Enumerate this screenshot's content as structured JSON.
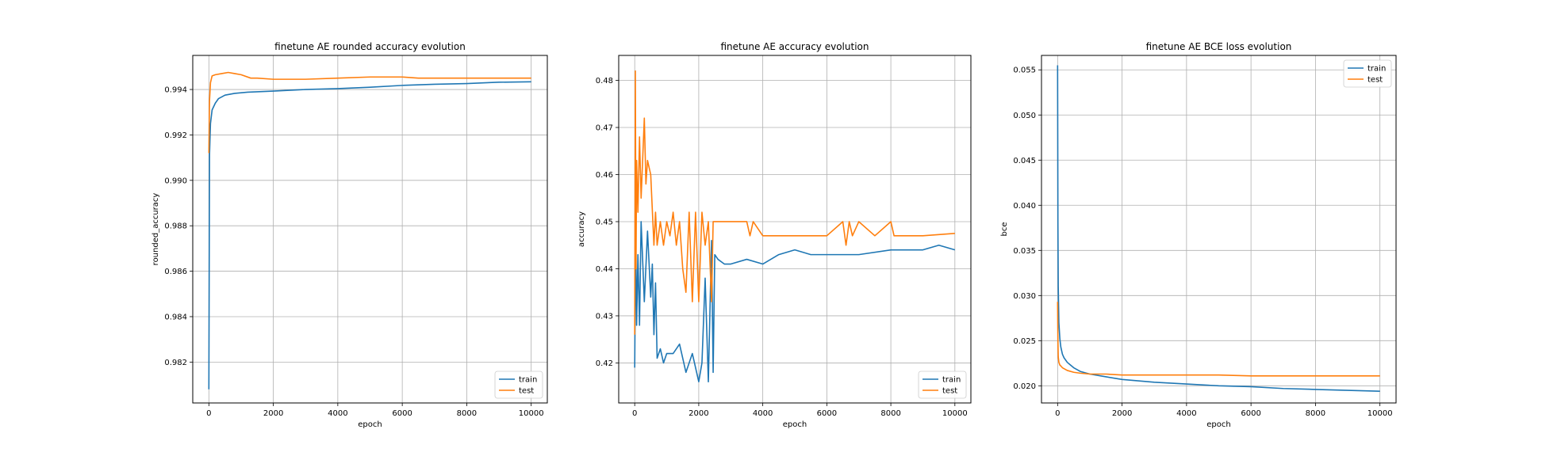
{
  "colors": {
    "train": "#1f77b4",
    "test": "#ff7f0e",
    "grid": "#b0b0b0"
  },
  "chart_data": [
    {
      "type": "line",
      "title": "finetune AE rounded accuracy evolution",
      "xlabel": "epoch",
      "ylabel": "rounded_accuracy",
      "xlim": [
        -500,
        10500
      ],
      "ylim": [
        0.9802,
        0.9955
      ],
      "xticks": [
        0,
        2000,
        4000,
        6000,
        8000,
        10000
      ],
      "yticks": [
        0.982,
        0.984,
        0.986,
        0.988,
        0.99,
        0.992,
        0.994
      ],
      "grid": true,
      "legend": "lower-right",
      "series": [
        {
          "name": "train",
          "color": "#1f77b4",
          "x": [
            0,
            20,
            50,
            100,
            200,
            300,
            500,
            800,
            1200,
            2000,
            3000,
            4000,
            5000,
            6000,
            7000,
            8000,
            9000,
            10000
          ],
          "y": [
            0.9808,
            0.9911,
            0.9925,
            0.9931,
            0.9934,
            0.9936,
            0.99375,
            0.99383,
            0.99388,
            0.99393,
            0.994,
            0.99404,
            0.9941,
            0.99418,
            0.99423,
            0.99426,
            0.99432,
            0.99434
          ]
        },
        {
          "name": "test",
          "color": "#ff7f0e",
          "x": [
            0,
            20,
            50,
            100,
            200,
            400,
            600,
            800,
            1000,
            1300,
            1500,
            2000,
            3000,
            4000,
            5000,
            6000,
            6500,
            7000,
            8000,
            9000,
            10000
          ],
          "y": [
            0.9912,
            0.9935,
            0.9943,
            0.9946,
            0.99465,
            0.9947,
            0.99475,
            0.9947,
            0.99465,
            0.9945,
            0.9945,
            0.99445,
            0.99445,
            0.9945,
            0.99455,
            0.99455,
            0.9945,
            0.9945,
            0.9945,
            0.9945,
            0.9945
          ]
        }
      ]
    },
    {
      "type": "line",
      "title": "finetune AE accuracy evolution",
      "xlabel": "epoch",
      "ylabel": "accuracy",
      "xlim": [
        -500,
        10500
      ],
      "ylim": [
        0.4115,
        0.4853
      ],
      "xticks": [
        0,
        2000,
        4000,
        6000,
        8000,
        10000
      ],
      "yticks": [
        0.42,
        0.43,
        0.44,
        0.45,
        0.46,
        0.47,
        0.48
      ],
      "grid": true,
      "legend": "lower-right",
      "series": [
        {
          "name": "train",
          "color": "#1f77b4",
          "x": [
            0,
            30,
            60,
            100,
            150,
            200,
            300,
            400,
            500,
            550,
            600,
            650,
            700,
            800,
            900,
            1000,
            1200,
            1400,
            1600,
            1800,
            2000,
            2100,
            2200,
            2300,
            2400,
            2450,
            2500,
            2600,
            2800,
            3000,
            3500,
            4000,
            4500,
            5000,
            5500,
            6000,
            7000,
            8000,
            9000,
            9500,
            10000
          ],
          "y": [
            0.419,
            0.448,
            0.428,
            0.443,
            0.428,
            0.45,
            0.433,
            0.448,
            0.434,
            0.441,
            0.426,
            0.437,
            0.421,
            0.423,
            0.42,
            0.422,
            0.422,
            0.424,
            0.418,
            0.422,
            0.416,
            0.42,
            0.438,
            0.416,
            0.446,
            0.418,
            0.443,
            0.442,
            0.441,
            0.441,
            0.442,
            0.441,
            0.443,
            0.444,
            0.443,
            0.443,
            0.443,
            0.444,
            0.444,
            0.445,
            0.444
          ]
        },
        {
          "name": "test",
          "color": "#ff7f0e",
          "x": [
            0,
            20,
            40,
            60,
            100,
            150,
            200,
            300,
            350,
            400,
            500,
            600,
            650,
            700,
            800,
            900,
            1000,
            1100,
            1200,
            1300,
            1400,
            1500,
            1600,
            1700,
            1800,
            1900,
            2000,
            2100,
            2200,
            2300,
            2400,
            2450,
            2500,
            3000,
            3500,
            3600,
            3700,
            4000,
            5000,
            6000,
            6500,
            6600,
            6700,
            6800,
            7000,
            7500,
            8000,
            8100,
            9000,
            10000
          ],
          "y": [
            0.426,
            0.482,
            0.44,
            0.463,
            0.452,
            0.468,
            0.455,
            0.472,
            0.458,
            0.463,
            0.46,
            0.445,
            0.452,
            0.445,
            0.45,
            0.445,
            0.45,
            0.447,
            0.452,
            0.445,
            0.45,
            0.44,
            0.435,
            0.452,
            0.433,
            0.452,
            0.433,
            0.452,
            0.445,
            0.45,
            0.433,
            0.45,
            0.45,
            0.45,
            0.45,
            0.447,
            0.45,
            0.447,
            0.447,
            0.447,
            0.45,
            0.445,
            0.45,
            0.447,
            0.45,
            0.447,
            0.45,
            0.447,
            0.447,
            0.4475
          ]
        }
      ]
    },
    {
      "type": "line",
      "title": "finetune AE BCE loss evolution",
      "xlabel": "epoch",
      "ylabel": "bce",
      "xlim": [
        -500,
        10500
      ],
      "ylim": [
        0.0181,
        0.0566
      ],
      "xticks": [
        0,
        2000,
        4000,
        6000,
        8000,
        10000
      ],
      "yticks": [
        0.02,
        0.025,
        0.03,
        0.035,
        0.04,
        0.045,
        0.05,
        0.055
      ],
      "grid": true,
      "legend": "upper-right",
      "series": [
        {
          "name": "train",
          "color": "#1f77b4",
          "x": [
            0,
            10,
            20,
            40,
            70,
            100,
            150,
            200,
            300,
            400,
            500,
            700,
            1000,
            1500,
            2000,
            3000,
            4000,
            5000,
            6000,
            7000,
            8000,
            9000,
            10000
          ],
          "y": [
            0.0555,
            0.038,
            0.031,
            0.027,
            0.0252,
            0.0243,
            0.0235,
            0.0231,
            0.0226,
            0.0223,
            0.022,
            0.0216,
            0.0213,
            0.021,
            0.0207,
            0.0204,
            0.0202,
            0.02,
            0.0199,
            0.0197,
            0.0196,
            0.0195,
            0.0194
          ]
        },
        {
          "name": "test",
          "color": "#ff7f0e",
          "x": [
            0,
            10,
            20,
            40,
            70,
            100,
            150,
            200,
            300,
            500,
            700,
            1000,
            1500,
            2000,
            3000,
            4000,
            5000,
            6000,
            8000,
            10000
          ],
          "y": [
            0.0293,
            0.025,
            0.0232,
            0.0226,
            0.0223,
            0.0222,
            0.022,
            0.0219,
            0.0217,
            0.0215,
            0.0214,
            0.0213,
            0.0213,
            0.0212,
            0.0212,
            0.0212,
            0.0212,
            0.0211,
            0.0211,
            0.0211
          ]
        }
      ]
    }
  ]
}
